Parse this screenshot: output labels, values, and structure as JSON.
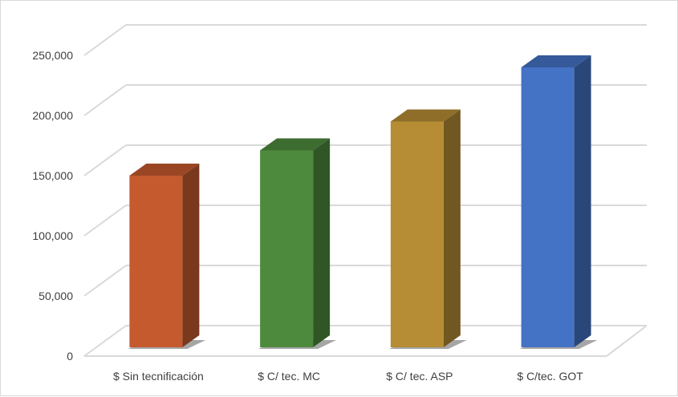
{
  "chart_data": {
    "type": "bar",
    "style": "3d-column",
    "title": "",
    "xlabel": "",
    "ylabel": "",
    "categories": [
      "$ Sin tecnificación",
      "$ C/ tec. MC",
      "$ C/ tec. ASP",
      "$ C/tec. GOT"
    ],
    "values": [
      150000,
      171000,
      195000,
      240000
    ],
    "colors": [
      "#c55a2f",
      "#4e8a3e",
      "#b68d35",
      "#4472c4"
    ],
    "ylim": [
      0,
      250000
    ],
    "yticks": [
      0,
      50000,
      100000,
      150000,
      200000,
      250000
    ],
    "ytick_labels": [
      "0",
      "50,000",
      "100,000",
      "150,000",
      "200,000",
      "250,000"
    ],
    "grid": true,
    "legend": "none"
  }
}
